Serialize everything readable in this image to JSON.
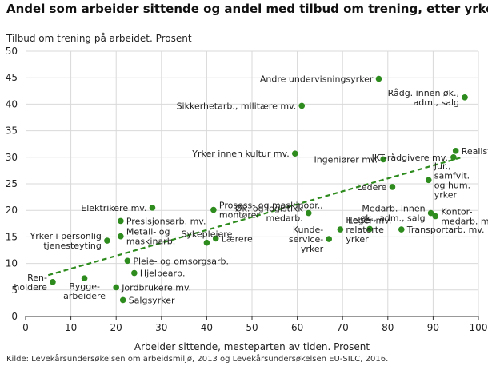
{
  "chart_title": "Andel som arbeider sittende og andel med tilbud om trening, etter yrke",
  "source": "Kilde: Levekårsundersøkelsen om arbeidsmiljø, 2013 og Levekårsundersøkelsen EU-SILC, 2016.",
  "colors": {
    "point": "#2e8b1e",
    "trend": "#2e8b1e",
    "grid": "#d9d9d9",
    "axis": "#333333"
  },
  "chart_data": {
    "type": "scatter",
    "title": "Andel som arbeider sittende og andel med tilbud om trening, etter yrke",
    "xlabel": "Arbeider sittende, mesteparten av tiden. Prosent",
    "ylabel": "Tilbud om trening på arbeidet. Prosent",
    "xlim": [
      0,
      100
    ],
    "ylim": [
      0,
      50
    ],
    "xticks": [
      0,
      10,
      20,
      30,
      40,
      50,
      60,
      70,
      80,
      90,
      100
    ],
    "yticks": [
      0,
      5,
      10,
      15,
      20,
      25,
      30,
      35,
      40,
      45,
      50
    ],
    "grid": true,
    "trendline": {
      "style": "dashed",
      "x": [
        5,
        96
      ],
      "y": [
        7.8,
        29.9
      ]
    },
    "points": [
      {
        "label": [
          "Ren-",
          "holdere"
        ],
        "x": 6,
        "y": 6.5,
        "anchor": "end"
      },
      {
        "label": [
          "Bygge-",
          "arbeidere"
        ],
        "x": 13,
        "y": 7.2,
        "anchor": "middle"
      },
      {
        "label": [
          "Yrker i personlig",
          "tjenesteyting"
        ],
        "x": 18,
        "y": 14.3,
        "anchor": "end"
      },
      {
        "label": [
          "Jordbrukere mv."
        ],
        "x": 20,
        "y": 5.5,
        "anchor": "start"
      },
      {
        "label": [
          "Presisjonsarb. mv."
        ],
        "x": 21,
        "y": 18,
        "anchor": "start"
      },
      {
        "label": [
          "Metall- og",
          "maskinarb."
        ],
        "x": 21,
        "y": 15.1,
        "anchor": "start"
      },
      {
        "label": [
          "Salgsyrker"
        ],
        "x": 21.5,
        "y": 3.1,
        "anchor": "start"
      },
      {
        "label": [
          "Pleie- og omsorgsarb."
        ],
        "x": 22.5,
        "y": 10.5,
        "anchor": "start"
      },
      {
        "label": [
          "Hjelpearb."
        ],
        "x": 24,
        "y": 8.2,
        "anchor": "start"
      },
      {
        "label": [
          "Elektrikere mv."
        ],
        "x": 28,
        "y": 20.5,
        "anchor": "end"
      },
      {
        "label": [
          "Sykepleiere"
        ],
        "x": 40,
        "y": 13.9,
        "anchor": "middle"
      },
      {
        "label": [
          "Prosess- og maskinopr.,",
          "montører"
        ],
        "x": 41.5,
        "y": 20.1,
        "anchor": "start"
      },
      {
        "label": [
          "Lærere"
        ],
        "x": 42,
        "y": 14.7,
        "anchor": "start"
      },
      {
        "label": [
          "Sikkerhetarb., militære mv."
        ],
        "x": 61,
        "y": 39.7,
        "anchor": "end"
      },
      {
        "label": [
          "Yrker innen kultur mv."
        ],
        "x": 59.5,
        "y": 30.7,
        "anchor": "end"
      },
      {
        "label": [
          "Øk. og logistikk",
          "medarb."
        ],
        "x": 62.5,
        "y": 19.5,
        "anchor": "end"
      },
      {
        "label": [
          "Kunde-",
          "service-",
          "yrker"
        ],
        "x": 67,
        "y": 14.6,
        "anchor": "end"
      },
      {
        "label": [
          "Helse-",
          "relaterte",
          "yrker"
        ],
        "x": 69.5,
        "y": 16.4,
        "anchor": "start"
      },
      {
        "label": [
          "Leger mv."
        ],
        "x": 76,
        "y": 16.5,
        "anchor": "middle"
      },
      {
        "label": [
          "Andre undervisningsyrker"
        ],
        "x": 78,
        "y": 44.8,
        "anchor": "end"
      },
      {
        "label": [
          "Ingeniører mv."
        ],
        "x": 79,
        "y": 29.6,
        "anchor": "end"
      },
      {
        "label": [
          "Ledere"
        ],
        "x": 81,
        "y": 24.4,
        "anchor": "end"
      },
      {
        "label": [
          "Transportarb. mv."
        ],
        "x": 83,
        "y": 16.4,
        "anchor": "start"
      },
      {
        "label": [
          "Jur.,",
          "samfvit.",
          "og hum.",
          "yrker"
        ],
        "x": 89,
        "y": 25.7,
        "anchor": "start"
      },
      {
        "label": [
          "Medarb. innen",
          "øk., adm., salg"
        ],
        "x": 89.5,
        "y": 19.5,
        "anchor": "end"
      },
      {
        "label": [
          "Kontor-",
          "medarb. mv."
        ],
        "x": 90.5,
        "y": 18.9,
        "anchor": "start"
      },
      {
        "label": [
          "IKT-rådgivere mv."
        ],
        "x": 94.5,
        "y": 30,
        "anchor": "end"
      },
      {
        "label": [
          "Realister mv."
        ],
        "x": 95,
        "y": 31.2,
        "anchor": "start"
      },
      {
        "label": [
          "Rådg. innen øk.,",
          "adm., salg"
        ],
        "x": 97,
        "y": 41.3,
        "anchor": "end"
      }
    ]
  }
}
